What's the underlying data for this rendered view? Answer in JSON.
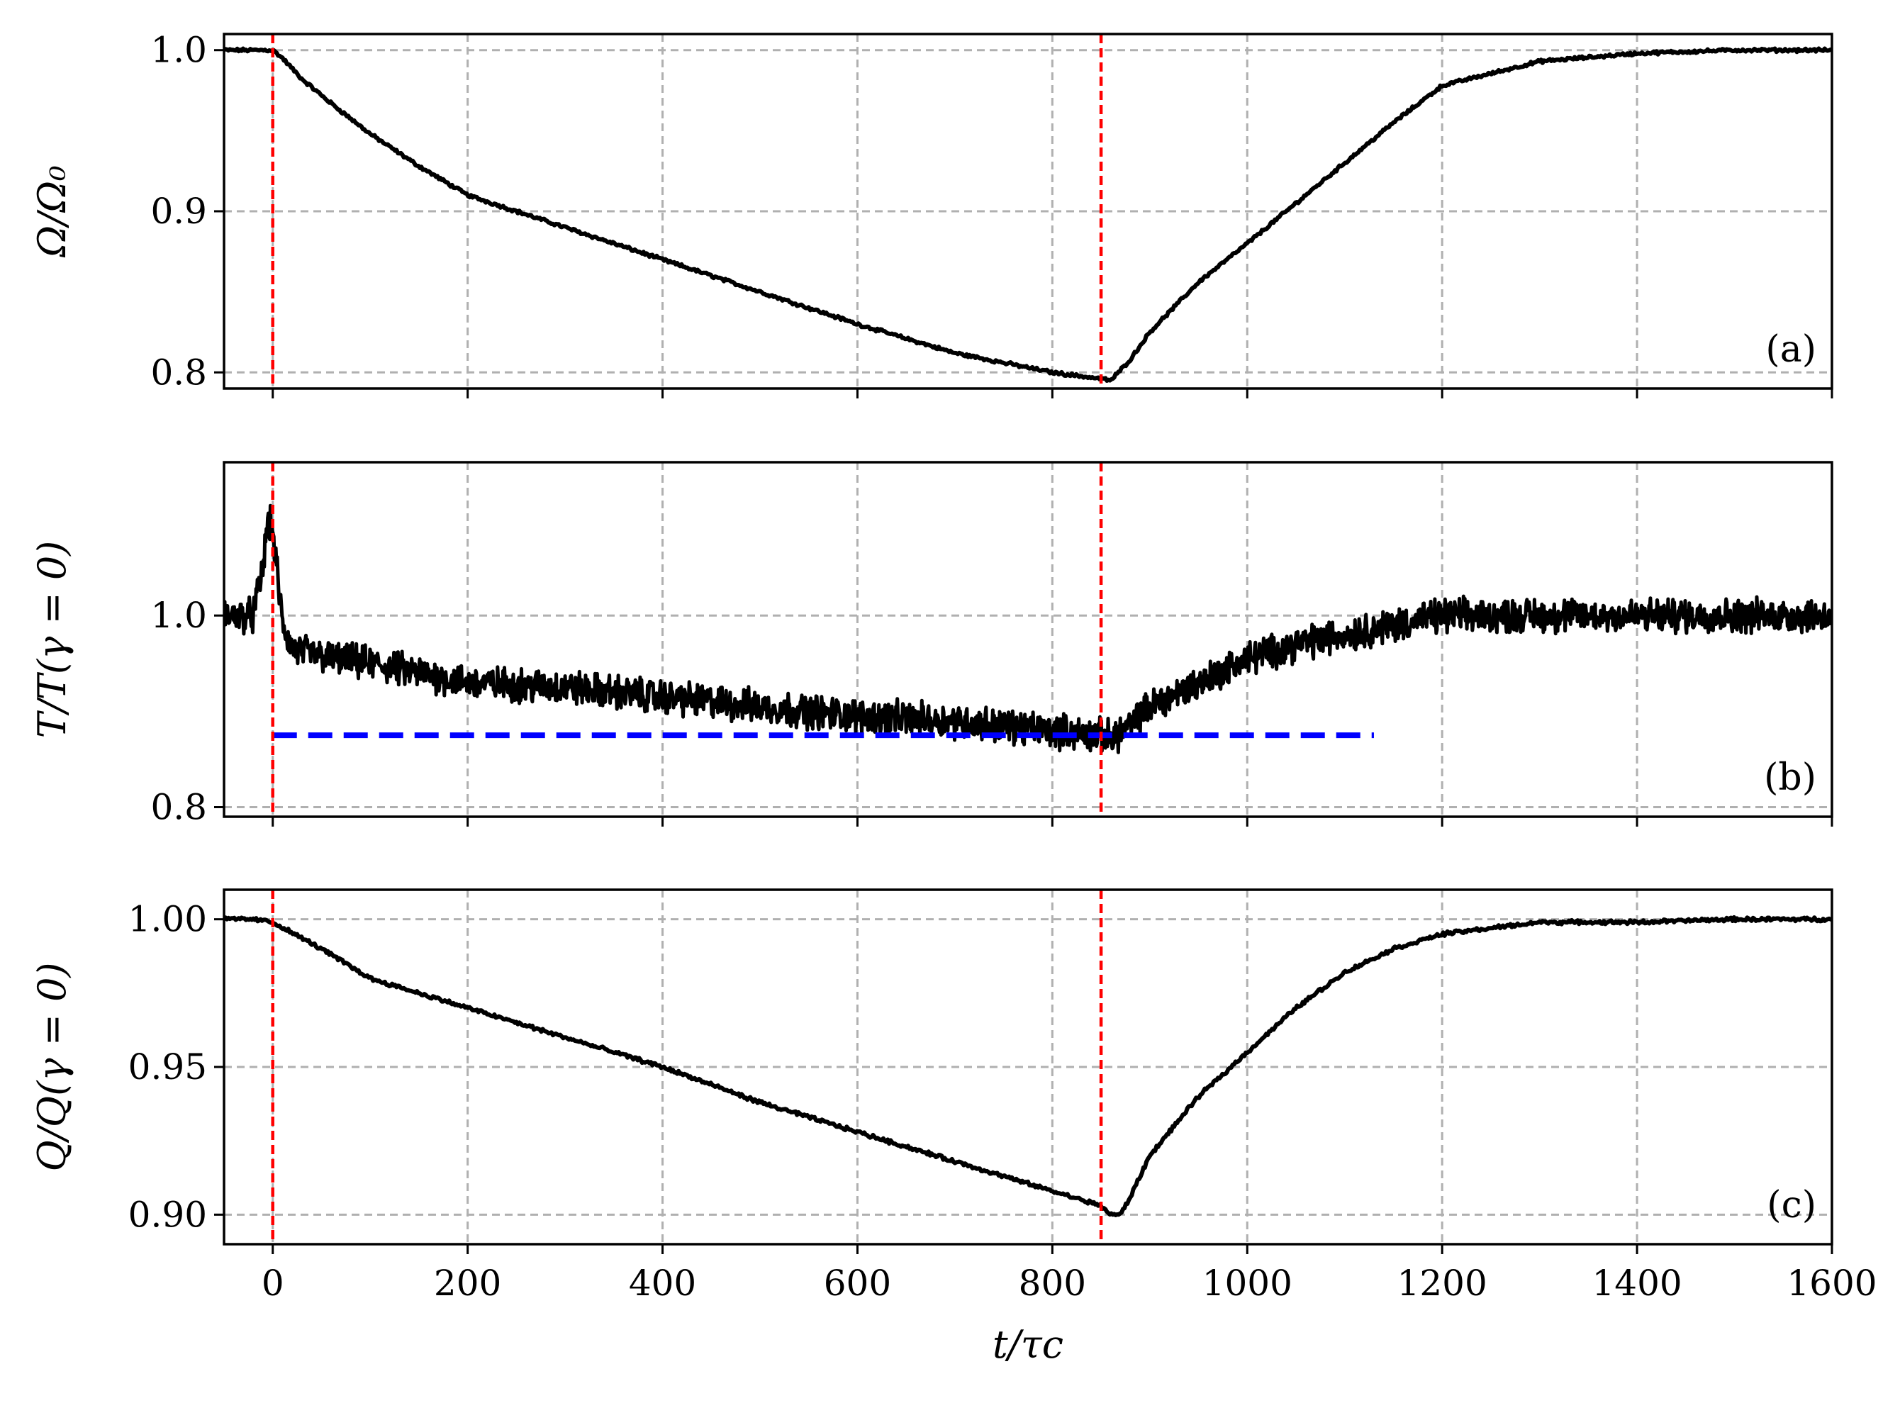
{
  "chart_data": [
    {
      "type": "line",
      "panel_label": "(a)",
      "ylabel": "Ω/Ω₀",
      "xlabel": "",
      "xlim": [
        -50,
        1600
      ],
      "ylim": [
        0.79,
        1.01
      ],
      "xticks": [
        0,
        200,
        400,
        600,
        800,
        1000,
        1200,
        1400,
        1600
      ],
      "xtick_labels_visible": false,
      "yticks": [
        0.8,
        0.9,
        1.0
      ],
      "ytick_labels": [
        "0.8",
        "0.9",
        "1.0"
      ],
      "grid": true,
      "vlines": [
        0,
        850
      ],
      "noise": 0.0008,
      "series": [
        {
          "x": [
            -50,
            -20,
            0,
            10,
            30,
            60,
            100,
            150,
            200,
            300,
            400,
            500,
            600,
            700,
            800,
            850,
            860,
            880,
            900,
            950,
            1000,
            1050,
            1100,
            1150,
            1200,
            1300,
            1400,
            1500,
            1600
          ],
          "y": [
            1.0,
            1.0,
            1.0,
            0.995,
            0.982,
            0.967,
            0.948,
            0.928,
            0.91,
            0.89,
            0.87,
            0.85,
            0.83,
            0.812,
            0.8,
            0.796,
            0.795,
            0.808,
            0.825,
            0.856,
            0.88,
            0.905,
            0.93,
            0.955,
            0.978,
            0.993,
            0.998,
            1.0,
            1.0
          ]
        }
      ]
    },
    {
      "type": "line",
      "panel_label": "(b)",
      "ylabel": "T/T(γ = 0)",
      "xlabel": "",
      "xlim": [
        -50,
        1600
      ],
      "ylim": [
        0.79,
        1.16
      ],
      "xticks": [
        0,
        200,
        400,
        600,
        800,
        1000,
        1200,
        1400,
        1600
      ],
      "xtick_labels_visible": false,
      "yticks": [
        0.8,
        1.0
      ],
      "ytick_labels": [
        "0.8",
        "1.0"
      ],
      "grid": true,
      "vlines": [
        0,
        850
      ],
      "hline": {
        "y": 0.875,
        "x": [
          0,
          1130
        ]
      },
      "noise": 0.014,
      "series": [
        {
          "x": [
            -50,
            -20,
            -10,
            -5,
            0,
            5,
            10,
            20,
            40,
            60,
            100,
            150,
            200,
            300,
            400,
            500,
            600,
            700,
            800,
            850,
            860,
            880,
            900,
            950,
            1000,
            1050,
            1100,
            1150,
            1200,
            1300,
            1400,
            1500,
            1600
          ],
          "y": [
            1.0,
            1.0,
            1.05,
            1.1,
            1.09,
            1.04,
            0.99,
            0.965,
            0.96,
            0.955,
            0.95,
            0.94,
            0.93,
            0.925,
            0.915,
            0.905,
            0.895,
            0.89,
            0.88,
            0.875,
            0.872,
            0.885,
            0.905,
            0.93,
            0.955,
            0.97,
            0.98,
            0.99,
            1.0,
            1.0,
            1.0,
            1.0,
            1.0
          ]
        }
      ]
    },
    {
      "type": "line",
      "panel_label": "(c)",
      "ylabel": "Q/Q(γ = 0)",
      "xlabel": "t/τc",
      "xlim": [
        -50,
        1600
      ],
      "ylim": [
        0.89,
        1.01
      ],
      "xticks": [
        0,
        200,
        400,
        600,
        800,
        1000,
        1200,
        1400,
        1600
      ],
      "xtick_labels": [
        "0",
        "200",
        "400",
        "600",
        "800",
        "1000",
        "1200",
        "1400",
        "1600"
      ],
      "xtick_labels_visible": true,
      "yticks": [
        0.9,
        0.95,
        1.0
      ],
      "ytick_labels": [
        "0.90",
        "0.95",
        "1.00"
      ],
      "grid": true,
      "vlines": [
        0,
        850
      ],
      "noise": 0.0005,
      "series": [
        {
          "x": [
            -50,
            -20,
            0,
            50,
            100,
            150,
            200,
            300,
            400,
            500,
            600,
            700,
            800,
            850,
            860,
            870,
            880,
            900,
            950,
            1000,
            1050,
            1100,
            1150,
            1200,
            1300,
            1400,
            1500,
            1600
          ],
          "y": [
            1.0,
            1.0,
            0.999,
            0.99,
            0.98,
            0.975,
            0.97,
            0.96,
            0.95,
            0.938,
            0.928,
            0.918,
            0.908,
            0.903,
            0.9,
            0.9,
            0.906,
            0.92,
            0.94,
            0.955,
            0.97,
            0.982,
            0.99,
            0.995,
            0.999,
            0.999,
            1.0,
            1.0
          ]
        }
      ]
    }
  ]
}
